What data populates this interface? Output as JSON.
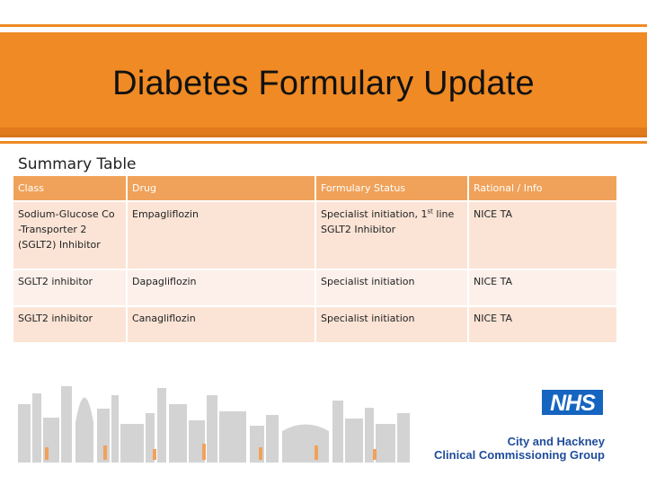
{
  "title": "Diabetes Formulary Update",
  "subtitle": "Summary Table",
  "table": {
    "headers": [
      "Class",
      "Drug",
      "Formulary Status",
      "Rational / Info"
    ],
    "rows": [
      {
        "class_lines": [
          "Sodium-Glucose Co",
          "-Transporter 2",
          "(SGLT2) Inhibitor"
        ],
        "drug": "Empagliflozin",
        "status_prefix": "Specialist initiation, 1",
        "status_sup": "st",
        "status_suffix": " line",
        "status_line2": "SGLT2 Inhibitor",
        "info": "NICE TA"
      },
      {
        "class": "SGLT2 inhibitor",
        "drug": "Dapagliflozin",
        "status": "Specialist initiation",
        "info": "NICE TA"
      },
      {
        "class": "SGLT2 inhibitor",
        "drug": "Canagliflozin",
        "status": "Specialist initiation",
        "info": "NICE TA"
      }
    ]
  },
  "logo": {
    "nhs": "NHS",
    "org_line1": "City and Hackney",
    "org_line2": "Clinical Commissioning Group"
  },
  "colors": {
    "banner": "#ef8a24",
    "table_header": "#f0a25a",
    "row_light": "#fbe4d6",
    "row_lighter": "#fdf0ea",
    "nhs_blue": "#1565c0",
    "org_text": "#1f4c9a",
    "skyline": "#cfcfcf"
  }
}
